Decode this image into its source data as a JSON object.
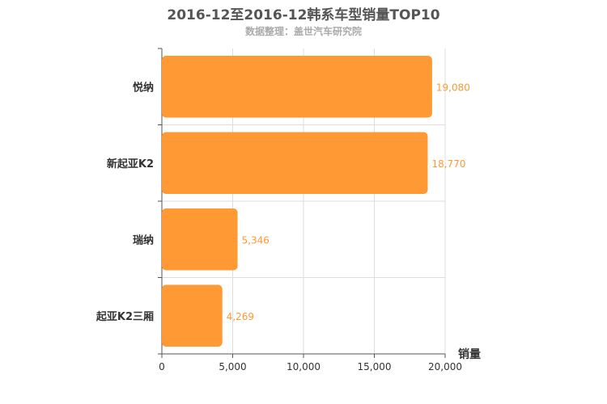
{
  "chart_data": {
    "type": "bar",
    "orientation": "horizontal",
    "title": "2016-12至2016-12韩系车型销量TOP10",
    "subtitle": "数据整理：盖世汽车研究院",
    "categories": [
      "悦纳",
      "新起亚K2",
      "瑞纳",
      "起亚K2三厢"
    ],
    "values": [
      19080,
      18770,
      5346,
      4269
    ],
    "value_labels": [
      "19,080",
      "18,770",
      "5,346",
      "4,269"
    ],
    "xlabel": "销量",
    "ylabel": "",
    "xlim": [
      0,
      20000
    ],
    "ticks": [
      0,
      5000,
      10000,
      15000,
      20000
    ],
    "tick_labels": [
      "0",
      "5,000",
      "10,000",
      "15,000",
      "20,000"
    ],
    "grid": true,
    "bar_color": "#ff9933",
    "label_color": "#ff9933"
  }
}
